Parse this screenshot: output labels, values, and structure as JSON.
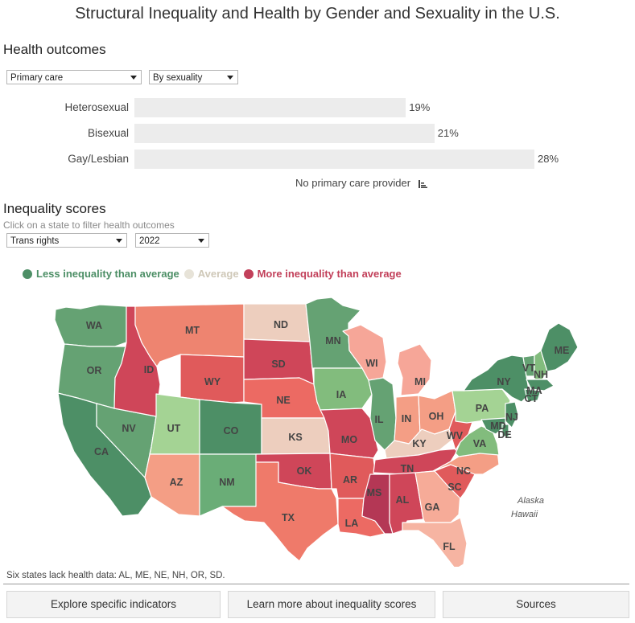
{
  "title": "Structural Inequality and Health by Gender and Sexuality in the U.S.",
  "health": {
    "heading": "Health outcomes",
    "outcome_select": "Primary care",
    "group_select": "By sexuality",
    "bars": [
      {
        "label": "Heterosexual",
        "value": 19,
        "display": "19%"
      },
      {
        "label": "Bisexual",
        "value": 21,
        "display": "21%"
      },
      {
        "label": "Gay/Lesbian",
        "value": 28,
        "display": "28%"
      }
    ],
    "axis_caption": "No primary care provider"
  },
  "inequality": {
    "heading": "Inequality scores",
    "subtitle": "Click on a state to filter health outcomes",
    "domain_select": "Trans rights",
    "year_select": "2022",
    "legend": {
      "less": "Less inequality than average",
      "average": "Average",
      "more": "More inequality than average"
    },
    "colors": {
      "less": "#4d8f66",
      "average": "#e7e3d8",
      "more": "#c2405a"
    },
    "insets": {
      "alaska": "Alaska",
      "hawaii": "Hawaii"
    },
    "states": {
      "WA": "WA",
      "OR": "OR",
      "CA": "CA",
      "NV": "NV",
      "ID": "ID",
      "MT": "MT",
      "WY": "WY",
      "UT": "UT",
      "CO": "CO",
      "AZ": "AZ",
      "NM": "NM",
      "ND": "ND",
      "SD": "SD",
      "NE": "NE",
      "KS": "KS",
      "OK": "OK",
      "TX": "TX",
      "MN": "MN",
      "IA": "IA",
      "MO": "MO",
      "AR": "AR",
      "LA": "LA",
      "WI": "WI",
      "IL": "IL",
      "MI": "MI",
      "IN": "IN",
      "OH": "OH",
      "KY": "KY",
      "TN": "TN",
      "MS": "MS",
      "AL": "AL",
      "GA": "GA",
      "FL": "FL",
      "SC": "SC",
      "NC": "NC",
      "VA": "VA",
      "WV": "WV",
      "PA": "PA",
      "NY": "NY",
      "VT": "VT",
      "NH": "NH",
      "ME": "ME",
      "MA": "MA",
      "CT": "CT",
      "NJ": "NJ",
      "MD": "MD",
      "DE": "DE"
    }
  },
  "note": "Six states lack health data: AL, ME, NE, NH, OR, SD.",
  "buttons": {
    "explore": "Explore specific indicators",
    "learn": "Learn more about inequality scores",
    "sources": "Sources"
  }
}
